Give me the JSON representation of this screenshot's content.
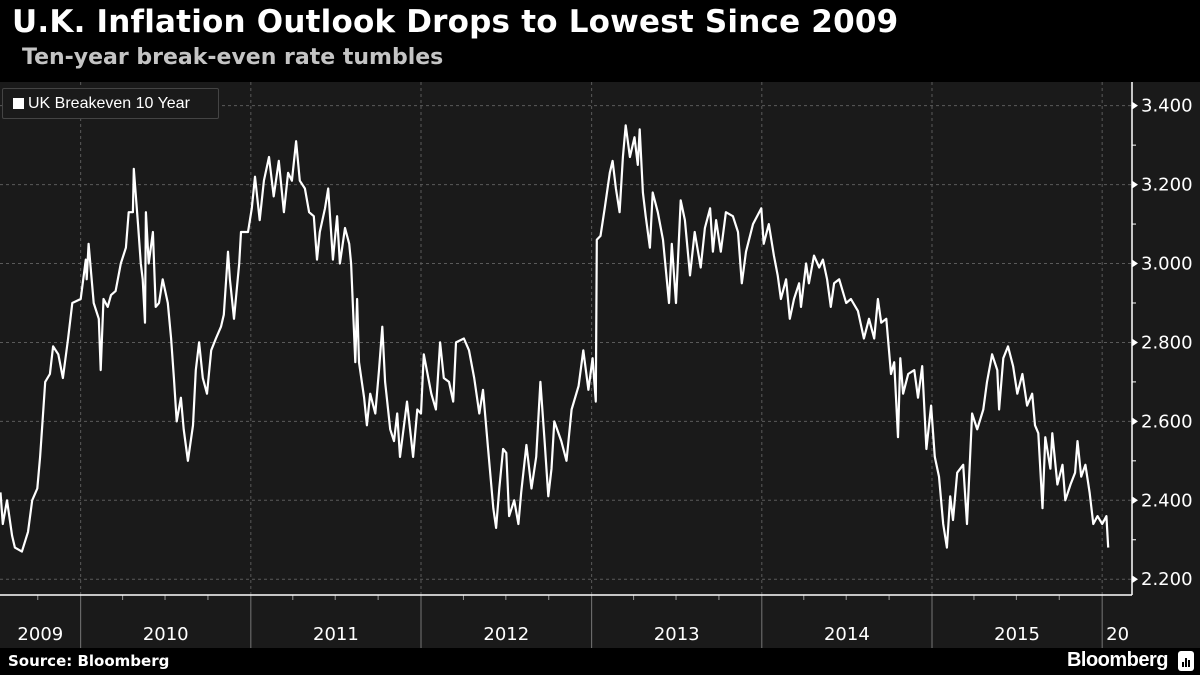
{
  "header": {
    "title": "U.K. Inflation Outlook Drops to Lowest Since 2009",
    "subtitle": "Ten-year break-even rate tumbles"
  },
  "footer": {
    "source": "Source: Bloomberg",
    "brand": "Bloomberg"
  },
  "colors": {
    "background": "#1a1a1a",
    "line": "#ffffff",
    "grid": "#555555",
    "title_bg": "#000000"
  },
  "chart_data": {
    "type": "line",
    "title": "U.K. Inflation Outlook Drops to Lowest Since 2009",
    "subtitle": "Ten-year break-even rate tumbles",
    "xlim": [
      "2009-07-12",
      "2016-03-05"
    ],
    "ylim": [
      2.16,
      3.46
    ],
    "y_axis_position": "right",
    "grid": true,
    "legend_placement": "top-left",
    "y_ticks": [
      "2.200",
      "2.400",
      "2.600",
      "2.800",
      "3.000",
      "3.200",
      "3.400"
    ],
    "x_tick_labels": [
      "2009",
      "2010",
      "2011",
      "2012",
      "2013",
      "2014",
      "2015",
      "20"
    ],
    "series": [
      {
        "name": "UK Breakeven 10 Year",
        "color": "#ffffff",
        "points": [
          [
            "2009-07-13",
            2.42
          ],
          [
            "2009-07-18",
            2.34
          ],
          [
            "2009-07-27",
            2.4
          ],
          [
            "2009-08-07",
            2.31
          ],
          [
            "2009-08-13",
            2.28
          ],
          [
            "2009-08-28",
            2.27
          ],
          [
            "2009-09-10",
            2.32
          ],
          [
            "2009-09-19",
            2.4
          ],
          [
            "2009-09-30",
            2.43
          ],
          [
            "2009-10-06",
            2.51
          ],
          [
            "2009-10-10",
            2.58
          ],
          [
            "2009-10-17",
            2.7
          ],
          [
            "2009-10-27",
            2.72
          ],
          [
            "2009-11-03",
            2.79
          ],
          [
            "2009-11-14",
            2.77
          ],
          [
            "2009-11-24",
            2.71
          ],
          [
            "2009-12-05",
            2.81
          ],
          [
            "2009-12-14",
            2.9
          ],
          [
            "2010-01-01",
            2.91
          ],
          [
            "2010-01-12",
            3.01
          ],
          [
            "2010-01-14",
            2.96
          ],
          [
            "2010-01-18",
            3.05
          ],
          [
            "2010-01-29",
            2.9
          ],
          [
            "2010-02-09",
            2.86
          ],
          [
            "2010-02-13",
            2.73
          ],
          [
            "2010-02-19",
            2.91
          ],
          [
            "2010-02-28",
            2.89
          ],
          [
            "2010-03-07",
            2.92
          ],
          [
            "2010-03-17",
            2.93
          ],
          [
            "2010-03-28",
            3.0
          ],
          [
            "2010-04-08",
            3.04
          ],
          [
            "2010-04-14",
            3.13
          ],
          [
            "2010-04-23",
            3.13
          ],
          [
            "2010-04-25",
            3.24
          ],
          [
            "2010-05-04",
            3.1
          ],
          [
            "2010-05-10",
            3.0
          ],
          [
            "2010-05-14",
            2.96
          ],
          [
            "2010-05-19",
            2.85
          ],
          [
            "2010-05-21",
            3.13
          ],
          [
            "2010-05-27",
            3.0
          ],
          [
            "2010-06-05",
            3.08
          ],
          [
            "2010-06-11",
            2.89
          ],
          [
            "2010-06-18",
            2.9
          ],
          [
            "2010-06-26",
            2.96
          ],
          [
            "2010-07-07",
            2.9
          ],
          [
            "2010-07-14",
            2.81
          ],
          [
            "2010-07-20",
            2.71
          ],
          [
            "2010-07-26",
            2.6
          ],
          [
            "2010-08-04",
            2.66
          ],
          [
            "2010-08-10",
            2.58
          ],
          [
            "2010-08-19",
            2.5
          ],
          [
            "2010-08-30",
            2.59
          ],
          [
            "2010-09-05",
            2.73
          ],
          [
            "2010-09-12",
            2.8
          ],
          [
            "2010-09-20",
            2.71
          ],
          [
            "2010-09-29",
            2.67
          ],
          [
            "2010-10-08",
            2.78
          ],
          [
            "2010-10-18",
            2.81
          ],
          [
            "2010-10-29",
            2.84
          ],
          [
            "2010-11-04",
            2.87
          ],
          [
            "2010-11-13",
            3.03
          ],
          [
            "2010-11-17",
            2.96
          ],
          [
            "2010-11-26",
            2.86
          ],
          [
            "2010-12-07",
            3.0
          ],
          [
            "2010-12-11",
            3.08
          ],
          [
            "2010-12-26",
            3.08
          ],
          [
            "2011-01-03",
            3.14
          ],
          [
            "2011-01-10",
            3.22
          ],
          [
            "2011-01-20",
            3.11
          ],
          [
            "2011-01-29",
            3.21
          ],
          [
            "2011-02-09",
            3.27
          ],
          [
            "2011-02-19",
            3.17
          ],
          [
            "2011-03-02",
            3.26
          ],
          [
            "2011-03-13",
            3.13
          ],
          [
            "2011-03-22",
            3.23
          ],
          [
            "2011-03-30",
            3.21
          ],
          [
            "2011-04-08",
            3.31
          ],
          [
            "2011-04-16",
            3.21
          ],
          [
            "2011-04-27",
            3.19
          ],
          [
            "2011-05-06",
            3.13
          ],
          [
            "2011-05-16",
            3.12
          ],
          [
            "2011-05-23",
            3.01
          ],
          [
            "2011-05-29",
            3.08
          ],
          [
            "2011-06-09",
            3.14
          ],
          [
            "2011-06-16",
            3.19
          ],
          [
            "2011-06-26",
            3.01
          ],
          [
            "2011-07-05",
            3.12
          ],
          [
            "2011-07-11",
            3.0
          ],
          [
            "2011-07-22",
            3.09
          ],
          [
            "2011-07-31",
            3.05
          ],
          [
            "2011-08-04",
            3.0
          ],
          [
            "2011-08-13",
            2.75
          ],
          [
            "2011-08-17",
            2.91
          ],
          [
            "2011-08-21",
            2.75
          ],
          [
            "2011-09-01",
            2.66
          ],
          [
            "2011-09-07",
            2.59
          ],
          [
            "2011-09-14",
            2.67
          ],
          [
            "2011-09-25",
            2.62
          ],
          [
            "2011-10-03",
            2.73
          ],
          [
            "2011-10-10",
            2.84
          ],
          [
            "2011-10-16",
            2.7
          ],
          [
            "2011-10-27",
            2.58
          ],
          [
            "2011-11-04",
            2.55
          ],
          [
            "2011-11-11",
            2.62
          ],
          [
            "2011-11-17",
            2.51
          ],
          [
            "2011-12-02",
            2.65
          ],
          [
            "2011-12-15",
            2.51
          ],
          [
            "2011-12-24",
            2.63
          ],
          [
            "2012-01-01",
            2.62
          ],
          [
            "2012-01-07",
            2.77
          ],
          [
            "2012-01-23",
            2.67
          ],
          [
            "2012-02-02",
            2.63
          ],
          [
            "2012-02-11",
            2.8
          ],
          [
            "2012-02-19",
            2.71
          ],
          [
            "2012-03-01",
            2.7
          ],
          [
            "2012-03-10",
            2.65
          ],
          [
            "2012-03-16",
            2.8
          ],
          [
            "2012-04-02",
            2.81
          ],
          [
            "2012-04-13",
            2.78
          ],
          [
            "2012-04-24",
            2.71
          ],
          [
            "2012-05-05",
            2.62
          ],
          [
            "2012-05-13",
            2.68
          ],
          [
            "2012-05-24",
            2.53
          ],
          [
            "2012-06-04",
            2.38
          ],
          [
            "2012-06-10",
            2.33
          ],
          [
            "2012-06-17",
            2.43
          ],
          [
            "2012-06-25",
            2.53
          ],
          [
            "2012-07-02",
            2.52
          ],
          [
            "2012-07-08",
            2.36
          ],
          [
            "2012-07-19",
            2.4
          ],
          [
            "2012-07-28",
            2.34
          ],
          [
            "2012-08-03",
            2.42
          ],
          [
            "2012-08-14",
            2.54
          ],
          [
            "2012-08-25",
            2.43
          ],
          [
            "2012-09-04",
            2.51
          ],
          [
            "2012-09-13",
            2.7
          ],
          [
            "2012-09-22",
            2.55
          ],
          [
            "2012-09-30",
            2.41
          ],
          [
            "2012-10-07",
            2.48
          ],
          [
            "2012-10-13",
            2.6
          ],
          [
            "2012-10-28",
            2.55
          ],
          [
            "2012-11-08",
            2.5
          ],
          [
            "2012-11-19",
            2.63
          ],
          [
            "2012-12-04",
            2.69
          ],
          [
            "2012-12-14",
            2.78
          ],
          [
            "2012-12-25",
            2.68
          ],
          [
            "2013-01-03",
            2.76
          ],
          [
            "2013-01-10",
            2.65
          ],
          [
            "2013-01-12",
            3.06
          ],
          [
            "2013-01-20",
            3.07
          ],
          [
            "2013-01-29",
            3.14
          ],
          [
            "2013-02-09",
            3.23
          ],
          [
            "2013-02-15",
            3.26
          ],
          [
            "2013-02-22",
            3.19
          ],
          [
            "2013-03-02",
            3.13
          ],
          [
            "2013-03-09",
            3.27
          ],
          [
            "2013-03-15",
            3.35
          ],
          [
            "2013-03-24",
            3.27
          ],
          [
            "2013-04-03",
            3.32
          ],
          [
            "2013-04-10",
            3.25
          ],
          [
            "2013-04-14",
            3.34
          ],
          [
            "2013-04-21",
            3.18
          ],
          [
            "2013-04-27",
            3.12
          ],
          [
            "2013-05-06",
            3.04
          ],
          [
            "2013-05-12",
            3.18
          ],
          [
            "2013-05-23",
            3.13
          ],
          [
            "2013-06-03",
            3.06
          ],
          [
            "2013-06-16",
            2.9
          ],
          [
            "2013-06-22",
            3.05
          ],
          [
            "2013-07-01",
            2.9
          ],
          [
            "2013-07-11",
            3.16
          ],
          [
            "2013-07-20",
            3.11
          ],
          [
            "2013-07-31",
            2.97
          ],
          [
            "2013-08-10",
            3.08
          ],
          [
            "2013-08-23",
            2.99
          ],
          [
            "2013-09-01",
            3.09
          ],
          [
            "2013-09-12",
            3.14
          ],
          [
            "2013-09-18",
            3.03
          ],
          [
            "2013-09-25",
            3.11
          ],
          [
            "2013-10-05",
            3.03
          ],
          [
            "2013-10-16",
            3.13
          ],
          [
            "2013-10-31",
            3.12
          ],
          [
            "2013-11-11",
            3.08
          ],
          [
            "2013-11-19",
            2.95
          ],
          [
            "2013-11-28",
            3.03
          ],
          [
            "2013-12-13",
            3.1
          ],
          [
            "2013-12-31",
            3.14
          ],
          [
            "2014-01-05",
            3.05
          ],
          [
            "2014-01-16",
            3.1
          ],
          [
            "2014-01-27",
            3.02
          ],
          [
            "2014-02-04",
            2.97
          ],
          [
            "2014-02-11",
            2.91
          ],
          [
            "2014-02-22",
            2.96
          ],
          [
            "2014-03-02",
            2.86
          ],
          [
            "2014-03-11",
            2.91
          ],
          [
            "2014-03-22",
            2.95
          ],
          [
            "2014-03-26",
            2.89
          ],
          [
            "2014-04-06",
            3.0
          ],
          [
            "2014-04-12",
            2.95
          ],
          [
            "2014-04-23",
            3.02
          ],
          [
            "2014-05-04",
            2.99
          ],
          [
            "2014-05-12",
            3.01
          ],
          [
            "2014-05-21",
            2.96
          ],
          [
            "2014-05-29",
            2.89
          ],
          [
            "2014-06-05",
            2.95
          ],
          [
            "2014-06-16",
            2.96
          ],
          [
            "2014-07-01",
            2.9
          ],
          [
            "2014-07-11",
            2.91
          ],
          [
            "2014-07-26",
            2.88
          ],
          [
            "2014-08-08",
            2.81
          ],
          [
            "2014-08-19",
            2.86
          ],
          [
            "2014-08-30",
            2.81
          ],
          [
            "2014-09-07",
            2.91
          ],
          [
            "2014-09-14",
            2.85
          ],
          [
            "2014-09-25",
            2.86
          ],
          [
            "2014-10-05",
            2.72
          ],
          [
            "2014-10-12",
            2.75
          ],
          [
            "2014-10-20",
            2.56
          ],
          [
            "2014-10-25",
            2.76
          ],
          [
            "2014-10-31",
            2.67
          ],
          [
            "2014-11-11",
            2.72
          ],
          [
            "2014-11-24",
            2.73
          ],
          [
            "2014-12-02",
            2.66
          ],
          [
            "2014-12-11",
            2.74
          ],
          [
            "2014-12-20",
            2.53
          ],
          [
            "2014-12-30",
            2.64
          ],
          [
            "2015-01-07",
            2.51
          ],
          [
            "2015-01-16",
            2.46
          ],
          [
            "2015-01-25",
            2.34
          ],
          [
            "2015-02-02",
            2.28
          ],
          [
            "2015-02-09",
            2.41
          ],
          [
            "2015-02-15",
            2.35
          ],
          [
            "2015-02-24",
            2.47
          ],
          [
            "2015-03-09",
            2.49
          ],
          [
            "2015-03-17",
            2.34
          ],
          [
            "2015-03-28",
            2.62
          ],
          [
            "2015-04-08",
            2.58
          ],
          [
            "2015-04-21",
            2.63
          ],
          [
            "2015-04-29",
            2.7
          ],
          [
            "2015-05-10",
            2.77
          ],
          [
            "2015-05-21",
            2.73
          ],
          [
            "2015-05-25",
            2.63
          ],
          [
            "2015-06-03",
            2.76
          ],
          [
            "2015-06-13",
            2.79
          ],
          [
            "2015-06-24",
            2.74
          ],
          [
            "2015-07-03",
            2.67
          ],
          [
            "2015-07-14",
            2.72
          ],
          [
            "2015-07-24",
            2.64
          ],
          [
            "2015-08-04",
            2.67
          ],
          [
            "2015-08-10",
            2.59
          ],
          [
            "2015-08-17",
            2.57
          ],
          [
            "2015-08-26",
            2.38
          ],
          [
            "2015-09-01",
            2.56
          ],
          [
            "2015-09-12",
            2.48
          ],
          [
            "2015-09-16",
            2.57
          ],
          [
            "2015-09-27",
            2.44
          ],
          [
            "2015-10-08",
            2.49
          ],
          [
            "2015-10-14",
            2.4
          ],
          [
            "2015-10-25",
            2.44
          ],
          [
            "2015-11-04",
            2.47
          ],
          [
            "2015-11-09",
            2.55
          ],
          [
            "2015-11-17",
            2.46
          ],
          [
            "2015-11-26",
            2.49
          ],
          [
            "2015-12-05",
            2.42
          ],
          [
            "2015-12-13",
            2.34
          ],
          [
            "2015-12-22",
            2.36
          ],
          [
            "2016-01-01",
            2.34
          ],
          [
            "2016-01-10",
            2.36
          ],
          [
            "2016-01-14",
            2.28
          ]
        ]
      }
    ]
  }
}
